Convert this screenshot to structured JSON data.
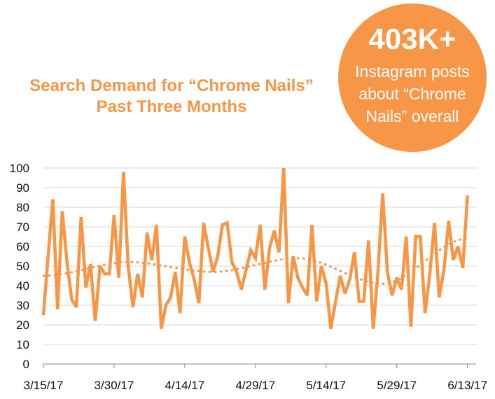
{
  "title_line1": "Search Demand for “Chrome Nails”",
  "title_line2": "Past Three Months",
  "badge": {
    "big": "403K+",
    "line1": "Instagram posts",
    "line2": "about “Chrome",
    "line3": "Nails” overall"
  },
  "colors": {
    "accent": "#F79646",
    "grid": "#D9D9D9"
  },
  "chart_data": {
    "type": "line",
    "title": "Search Demand for “Chrome Nails” Past Three Months",
    "xlabel": "",
    "ylabel": "",
    "ylim": [
      0,
      100
    ],
    "yticks": [
      0,
      10,
      20,
      30,
      40,
      50,
      60,
      70,
      80,
      90,
      100
    ],
    "x_start": "3/15/17",
    "x_end": "6/13/17",
    "xtick_labels": [
      "3/15/17",
      "3/30/17",
      "4/14/17",
      "4/29/17",
      "5/14/17",
      "5/29/17",
      "6/13/17"
    ],
    "grid": true,
    "series": [
      {
        "values": [
          25,
          55,
          84,
          28,
          78,
          52,
          33,
          29,
          75,
          39,
          51,
          22,
          50,
          46,
          46,
          76,
          44,
          98,
          50,
          29,
          46,
          34,
          67,
          53,
          71,
          18,
          30,
          34,
          47,
          26,
          65,
          52,
          43,
          31,
          72,
          59,
          47,
          55,
          71,
          72,
          52,
          47,
          38,
          48,
          58,
          54,
          71,
          38,
          59,
          68,
          57,
          100,
          31,
          55,
          44,
          39,
          35,
          71,
          32,
          50,
          41,
          18,
          32,
          45,
          36,
          43,
          57,
          32,
          32,
          63,
          18,
          47,
          87,
          47,
          35,
          44,
          38,
          65,
          19,
          65,
          65,
          26,
          46,
          72,
          34,
          48,
          73,
          53,
          60,
          49,
          86
        ]
      }
    ],
    "trendline": {
      "type": "polynomial",
      "style": "dotted",
      "values": [
        45,
        52,
        47,
        54,
        41,
        64
      ]
    }
  }
}
